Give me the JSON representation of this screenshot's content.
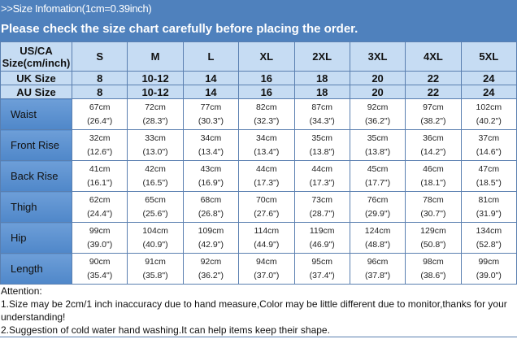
{
  "header": {
    "title": ">>Size Infomation(1cm=0.39inch)",
    "subtitle": "Please check the size chart carefully before placing the order."
  },
  "table": {
    "corner": "US/CA Size(cm/inch)",
    "sizes": [
      "S",
      "M",
      "L",
      "XL",
      "2XL",
      "3XL",
      "4XL",
      "5XL"
    ],
    "uk": {
      "label": "UK Size",
      "values": [
        "8",
        "10-12",
        "14",
        "16",
        "18",
        "20",
        "22",
        "24"
      ]
    },
    "au": {
      "label": "AU Size",
      "values": [
        "8",
        "10-12",
        "14",
        "16",
        "18",
        "20",
        "22",
        "24"
      ]
    },
    "rows": [
      {
        "label": "Waist",
        "cm": [
          "67cm",
          "72cm",
          "77cm",
          "82cm",
          "87cm",
          "92cm",
          "97cm",
          "102cm"
        ],
        "in": [
          "(26.4\")",
          "(28.3\")",
          "(30.3\")",
          "(32.3\")",
          "(34.3\")",
          "(36.2\")",
          "(38.2\")",
          "(40.2\")"
        ]
      },
      {
        "label": "Front Rise",
        "cm": [
          "32cm",
          "33cm",
          "34cm",
          "34cm",
          "35cm",
          "35cm",
          "36cm",
          "37cm"
        ],
        "in": [
          "(12.6\")",
          "(13.0\")",
          "(13.4\")",
          "(13.4\")",
          "(13.8\")",
          "(13.8\")",
          "(14.2\")",
          "(14.6\")"
        ]
      },
      {
        "label": "Back Rise",
        "cm": [
          "41cm",
          "42cm",
          "43cm",
          "44cm",
          "44cm",
          "45cm",
          "46cm",
          "47cm"
        ],
        "in": [
          "(16.1\")",
          "(16.5\")",
          "(16.9\")",
          "(17.3\")",
          "(17.3\")",
          "(17.7\")",
          "(18.1\")",
          "(18.5\")"
        ]
      },
      {
        "label": "Thigh",
        "cm": [
          "62cm",
          "65cm",
          "68cm",
          "70cm",
          "73cm",
          "76cm",
          "78cm",
          "81cm"
        ],
        "in": [
          "(24.4\")",
          "(25.6\")",
          "(26.8\")",
          "(27.6\")",
          "(28.7\")",
          "(29.9\")",
          "(30.7\")",
          "(31.9\")"
        ]
      },
      {
        "label": "Hip",
        "cm": [
          "99cm",
          "104cm",
          "109cm",
          "114cm",
          "119cm",
          "124cm",
          "129cm",
          "134cm"
        ],
        "in": [
          "(39.0\")",
          "(40.9\")",
          "(42.9\")",
          "(44.9\")",
          "(46.9\")",
          "(48.8\")",
          "(50.8\")",
          "(52.8\")"
        ]
      },
      {
        "label": "Length",
        "cm": [
          "90cm",
          "91cm",
          "92cm",
          "94cm",
          "95cm",
          "96cm",
          "98cm",
          "99cm"
        ],
        "in": [
          "(35.4\")",
          "(35.8\")",
          "(36.2\")",
          "(37.0\")",
          "(37.4\")",
          "(37.8\")",
          "(38.6\")",
          "(39.0\")"
        ]
      }
    ]
  },
  "attention": {
    "title": "Attention:",
    "notes": [
      "1.Size may be 2cm/1 inch inaccuracy due to hand measure,Color may be little different due to monitor,thanks for your understanding!",
      "2.Suggestion of cold water hand washing.It can help items keep their shape."
    ]
  }
}
